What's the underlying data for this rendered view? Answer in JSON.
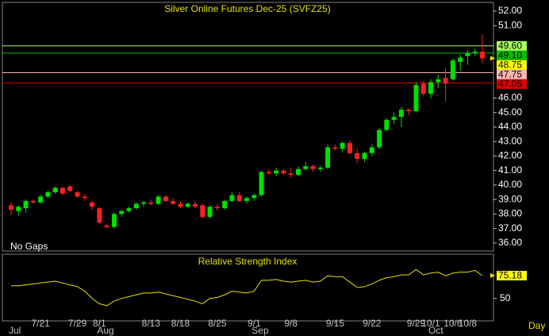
{
  "chart_data": [
    {
      "type": "candlestick",
      "title": "Silver Online Futures Dec-25 (SVFZ25)",
      "gap_mode": "No Gaps",
      "period": "Day",
      "categories": [
        null,
        null,
        null,
        null,
        "7/21",
        null,
        null,
        null,
        null,
        "7/29",
        null,
        null,
        "8/1",
        null,
        null,
        null,
        null,
        null,
        null,
        "8/13",
        null,
        null,
        null,
        "8/18",
        null,
        null,
        null,
        null,
        "8/25",
        null,
        null,
        null,
        null,
        "9/1",
        null,
        null,
        null,
        null,
        "9/8",
        null,
        null,
        null,
        null,
        null,
        "9/15",
        null,
        null,
        null,
        null,
        "9/22",
        null,
        null,
        null,
        null,
        null,
        "9/29",
        null,
        "10/1",
        null,
        null,
        "10/6",
        null,
        "10/8",
        null,
        null
      ],
      "months": [
        "Jul",
        null,
        null,
        null,
        null,
        null,
        null,
        null,
        null,
        null,
        null,
        null,
        "Aug",
        null,
        null,
        null,
        null,
        null,
        null,
        null,
        null,
        null,
        null,
        null,
        null,
        null,
        null,
        null,
        null,
        null,
        null,
        null,
        null,
        "Sep",
        null,
        null,
        null,
        null,
        null,
        null,
        null,
        null,
        null,
        null,
        null,
        null,
        null,
        null,
        null,
        null,
        null,
        null,
        null,
        null,
        null,
        null,
        null,
        "Oct",
        null,
        null,
        null,
        null,
        null,
        null,
        null
      ],
      "open": [
        38.6,
        38.2,
        38.4,
        38.9,
        38.8,
        39.2,
        39.5,
        39.8,
        39.9,
        39.5,
        39.2,
        38.8,
        38.4,
        37.2,
        37.1,
        38.0,
        38.2,
        38.4,
        38.7,
        38.8,
        38.7,
        39.2,
        38.9,
        38.7,
        38.5,
        38.7,
        38.6,
        37.8,
        38.5,
        38.4,
        38.9,
        39.3,
        38.9,
        39.1,
        39.3,
        40.9,
        40.8,
        41.0,
        40.8,
        40.7,
        41.1,
        41.3,
        41.1,
        41.2,
        42.6,
        42.5,
        42.9,
        42.2,
        41.8,
        42.2,
        42.6,
        43.8,
        44.5,
        44.7,
        45.2,
        45.1,
        47.0,
        46.3,
        47.1,
        47.4,
        47.3,
        48.5,
        48.9,
        49.1,
        49.2
      ],
      "high": [
        38.8,
        38.6,
        39.0,
        39.0,
        39.3,
        39.6,
        39.9,
        39.9,
        40.0,
        39.6,
        39.4,
        38.9,
        38.5,
        37.3,
        38.1,
        38.3,
        38.5,
        38.8,
        38.9,
        39.0,
        39.3,
        39.3,
        39.1,
        38.9,
        38.8,
        38.9,
        38.7,
        38.6,
        38.7,
        39.0,
        39.5,
        39.5,
        39.2,
        39.4,
        41.0,
        41.1,
        41.2,
        41.1,
        41.2,
        41.3,
        41.6,
        41.4,
        41.3,
        42.8,
        42.8,
        43.0,
        43.1,
        42.5,
        42.3,
        42.8,
        43.9,
        44.6,
        45.0,
        45.4,
        45.3,
        47.1,
        47.2,
        47.3,
        47.6,
        48.1,
        48.7,
        49.0,
        49.3,
        49.4,
        50.4
      ],
      "low": [
        37.9,
        37.9,
        38.1,
        38.7,
        38.7,
        39.1,
        39.4,
        39.3,
        39.5,
        39.1,
        38.9,
        38.3,
        37.3,
        37.0,
        37.0,
        37.8,
        38.1,
        38.3,
        38.5,
        38.6,
        38.6,
        38.8,
        38.6,
        38.4,
        38.4,
        38.4,
        37.7,
        37.7,
        38.2,
        38.3,
        38.8,
        38.8,
        38.7,
        38.9,
        39.2,
        40.7,
        40.6,
        40.7,
        40.5,
        40.6,
        41.0,
        40.9,
        40.9,
        41.1,
        42.4,
        42.3,
        42.1,
        41.5,
        41.6,
        42.0,
        42.5,
        43.7,
        44.2,
        44.0,
        44.8,
        45.0,
        46.1,
        46.0,
        46.7,
        45.8,
        47.2,
        47.9,
        48.3,
        48.9,
        48.4
      ],
      "close": [
        38.3,
        38.5,
        38.9,
        38.8,
        39.2,
        39.5,
        39.8,
        39.4,
        39.6,
        39.2,
        39.1,
        38.5,
        37.4,
        37.1,
        38.0,
        38.2,
        38.4,
        38.7,
        38.8,
        38.7,
        39.2,
        38.9,
        38.7,
        38.5,
        38.7,
        38.5,
        37.8,
        38.5,
        38.4,
        38.9,
        39.3,
        38.9,
        39.1,
        39.3,
        40.9,
        40.8,
        41.0,
        40.8,
        40.7,
        41.1,
        41.3,
        41.1,
        41.2,
        42.6,
        42.5,
        42.9,
        42.2,
        41.8,
        42.2,
        42.6,
        43.8,
        44.5,
        44.7,
        45.2,
        45.1,
        46.9,
        46.3,
        47.1,
        47.3,
        47.0,
        48.6,
        48.8,
        49.1,
        49.2,
        48.75
      ],
      "up_color": "#00e000",
      "down_color": "#ff2020",
      "levels": [
        {
          "value": 49.6,
          "label": "49.60",
          "color": "#a8ff60"
        },
        {
          "value": 49.1,
          "label": "49.10",
          "color": "#00c000"
        },
        {
          "value": 47.75,
          "label": "47.75",
          "color": "#ffb4b4"
        },
        {
          "value": 47.05,
          "label": "47.05",
          "color": "#e00000"
        }
      ],
      "ylim": [
        35.5,
        52.55
      ],
      "yticks": [
        {
          "value": 52,
          "label": "52.00"
        },
        {
          "value": 51,
          "label": "51.00"
        },
        {
          "value": 46,
          "label": "46.00"
        },
        {
          "value": 45,
          "label": "45.00"
        },
        {
          "value": 44,
          "label": "44.00"
        },
        {
          "value": 43,
          "label": "43.00"
        },
        {
          "value": 42,
          "label": "42.00"
        },
        {
          "value": 41,
          "label": "41.00"
        },
        {
          "value": 40,
          "label": "40.00"
        },
        {
          "value": 39,
          "label": "39.00"
        },
        {
          "value": 38,
          "label": "38.00"
        },
        {
          "value": 37,
          "label": "37.00"
        },
        {
          "value": 36,
          "label": "36.00"
        }
      ]
    },
    {
      "type": "line",
      "title": "Relative Strength Index",
      "color": "#e8e000",
      "values": [
        64,
        64,
        65,
        66,
        67,
        68,
        69,
        67,
        65,
        63,
        58,
        50,
        44,
        42,
        47,
        50,
        52,
        54,
        56,
        56,
        57,
        55,
        53,
        51,
        49,
        47,
        44,
        50,
        51,
        54,
        58,
        57,
        56,
        58,
        70,
        70,
        71,
        69,
        68,
        69,
        70,
        68,
        69,
        75,
        74,
        74,
        68,
        62,
        63,
        66,
        70,
        73,
        74,
        76,
        76,
        82,
        76,
        78,
        79,
        75,
        78,
        79,
        79,
        81,
        75.18
      ],
      "ylim": [
        26,
        98
      ],
      "yticks": [
        50
      ]
    }
  ]
}
